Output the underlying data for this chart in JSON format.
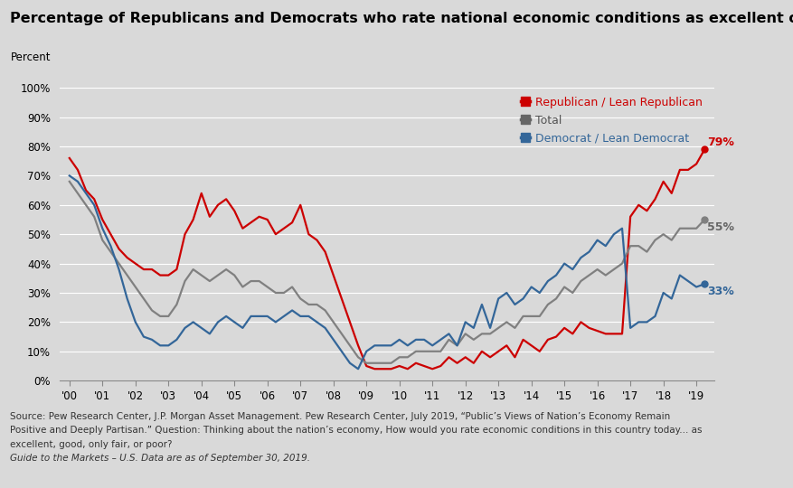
{
  "title": "Percentage of Republicans and Democrats who rate national economic conditions as excellent or good",
  "ylabel": "Percent",
  "background_color": "#d9d9d9",
  "title_fontsize": 11.5,
  "label_fontsize": 9,
  "republican": {
    "label": "Republican / Lean Republican",
    "color": "#cc0000",
    "end_label": "79%",
    "data": [
      [
        2000.0,
        76
      ],
      [
        2000.25,
        72
      ],
      [
        2000.5,
        65
      ],
      [
        2000.75,
        62
      ],
      [
        2001.0,
        55
      ],
      [
        2001.25,
        50
      ],
      [
        2001.5,
        45
      ],
      [
        2001.75,
        42
      ],
      [
        2002.0,
        40
      ],
      [
        2002.25,
        38
      ],
      [
        2002.5,
        38
      ],
      [
        2002.75,
        36
      ],
      [
        2003.0,
        36
      ],
      [
        2003.25,
        38
      ],
      [
        2003.5,
        50
      ],
      [
        2003.75,
        55
      ],
      [
        2004.0,
        64
      ],
      [
        2004.25,
        56
      ],
      [
        2004.5,
        60
      ],
      [
        2004.75,
        62
      ],
      [
        2005.0,
        58
      ],
      [
        2005.25,
        52
      ],
      [
        2005.5,
        54
      ],
      [
        2005.75,
        56
      ],
      [
        2006.0,
        55
      ],
      [
        2006.25,
        50
      ],
      [
        2006.5,
        52
      ],
      [
        2006.75,
        54
      ],
      [
        2007.0,
        60
      ],
      [
        2007.25,
        50
      ],
      [
        2007.5,
        48
      ],
      [
        2007.75,
        44
      ],
      [
        2008.0,
        36
      ],
      [
        2008.25,
        28
      ],
      [
        2008.5,
        20
      ],
      [
        2008.75,
        12
      ],
      [
        2009.0,
        5
      ],
      [
        2009.25,
        4
      ],
      [
        2009.5,
        4
      ],
      [
        2009.75,
        4
      ],
      [
        2010.0,
        5
      ],
      [
        2010.25,
        4
      ],
      [
        2010.5,
        6
      ],
      [
        2010.75,
        5
      ],
      [
        2011.0,
        4
      ],
      [
        2011.25,
        5
      ],
      [
        2011.5,
        8
      ],
      [
        2011.75,
        6
      ],
      [
        2012.0,
        8
      ],
      [
        2012.25,
        6
      ],
      [
        2012.5,
        10
      ],
      [
        2012.75,
        8
      ],
      [
        2013.0,
        10
      ],
      [
        2013.25,
        12
      ],
      [
        2013.5,
        8
      ],
      [
        2013.75,
        14
      ],
      [
        2014.0,
        12
      ],
      [
        2014.25,
        10
      ],
      [
        2014.5,
        14
      ],
      [
        2014.75,
        15
      ],
      [
        2015.0,
        18
      ],
      [
        2015.25,
        16
      ],
      [
        2015.5,
        20
      ],
      [
        2015.75,
        18
      ],
      [
        2016.0,
        17
      ],
      [
        2016.25,
        16
      ],
      [
        2016.5,
        16
      ],
      [
        2016.75,
        16
      ],
      [
        2017.0,
        56
      ],
      [
        2017.25,
        60
      ],
      [
        2017.5,
        58
      ],
      [
        2017.75,
        62
      ],
      [
        2018.0,
        68
      ],
      [
        2018.25,
        64
      ],
      [
        2018.5,
        72
      ],
      [
        2018.75,
        72
      ],
      [
        2019.0,
        74
      ],
      [
        2019.25,
        79
      ]
    ]
  },
  "total": {
    "label": "Total",
    "color": "#808080",
    "end_label": "55%",
    "data": [
      [
        2000.0,
        68
      ],
      [
        2000.25,
        64
      ],
      [
        2000.5,
        60
      ],
      [
        2000.75,
        56
      ],
      [
        2001.0,
        48
      ],
      [
        2001.25,
        44
      ],
      [
        2001.5,
        40
      ],
      [
        2001.75,
        36
      ],
      [
        2002.0,
        32
      ],
      [
        2002.25,
        28
      ],
      [
        2002.5,
        24
      ],
      [
        2002.75,
        22
      ],
      [
        2003.0,
        22
      ],
      [
        2003.25,
        26
      ],
      [
        2003.5,
        34
      ],
      [
        2003.75,
        38
      ],
      [
        2004.0,
        36
      ],
      [
        2004.25,
        34
      ],
      [
        2004.5,
        36
      ],
      [
        2004.75,
        38
      ],
      [
        2005.0,
        36
      ],
      [
        2005.25,
        32
      ],
      [
        2005.5,
        34
      ],
      [
        2005.75,
        34
      ],
      [
        2006.0,
        32
      ],
      [
        2006.25,
        30
      ],
      [
        2006.5,
        30
      ],
      [
        2006.75,
        32
      ],
      [
        2007.0,
        28
      ],
      [
        2007.25,
        26
      ],
      [
        2007.5,
        26
      ],
      [
        2007.75,
        24
      ],
      [
        2008.0,
        20
      ],
      [
        2008.25,
        16
      ],
      [
        2008.5,
        12
      ],
      [
        2008.75,
        8
      ],
      [
        2009.0,
        6
      ],
      [
        2009.25,
        6
      ],
      [
        2009.5,
        6
      ],
      [
        2009.75,
        6
      ],
      [
        2010.0,
        8
      ],
      [
        2010.25,
        8
      ],
      [
        2010.5,
        10
      ],
      [
        2010.75,
        10
      ],
      [
        2011.0,
        10
      ],
      [
        2011.25,
        10
      ],
      [
        2011.5,
        14
      ],
      [
        2011.75,
        12
      ],
      [
        2012.0,
        16
      ],
      [
        2012.25,
        14
      ],
      [
        2012.5,
        16
      ],
      [
        2012.75,
        16
      ],
      [
        2013.0,
        18
      ],
      [
        2013.25,
        20
      ],
      [
        2013.5,
        18
      ],
      [
        2013.75,
        22
      ],
      [
        2014.0,
        22
      ],
      [
        2014.25,
        22
      ],
      [
        2014.5,
        26
      ],
      [
        2014.75,
        28
      ],
      [
        2015.0,
        32
      ],
      [
        2015.25,
        30
      ],
      [
        2015.5,
        34
      ],
      [
        2015.75,
        36
      ],
      [
        2016.0,
        38
      ],
      [
        2016.25,
        36
      ],
      [
        2016.5,
        38
      ],
      [
        2016.75,
        40
      ],
      [
        2017.0,
        46
      ],
      [
        2017.25,
        46
      ],
      [
        2017.5,
        44
      ],
      [
        2017.75,
        48
      ],
      [
        2018.0,
        50
      ],
      [
        2018.25,
        48
      ],
      [
        2018.5,
        52
      ],
      [
        2018.75,
        52
      ],
      [
        2019.0,
        52
      ],
      [
        2019.25,
        55
      ]
    ]
  },
  "democrat": {
    "label": "Democrat / Lean Democrat",
    "color": "#336699",
    "end_label": "33%",
    "data": [
      [
        2000.0,
        70
      ],
      [
        2000.25,
        68
      ],
      [
        2000.5,
        64
      ],
      [
        2000.75,
        60
      ],
      [
        2001.0,
        52
      ],
      [
        2001.25,
        46
      ],
      [
        2001.5,
        38
      ],
      [
        2001.75,
        28
      ],
      [
        2002.0,
        20
      ],
      [
        2002.25,
        15
      ],
      [
        2002.5,
        14
      ],
      [
        2002.75,
        12
      ],
      [
        2003.0,
        12
      ],
      [
        2003.25,
        14
      ],
      [
        2003.5,
        18
      ],
      [
        2003.75,
        20
      ],
      [
        2004.0,
        18
      ],
      [
        2004.25,
        16
      ],
      [
        2004.5,
        20
      ],
      [
        2004.75,
        22
      ],
      [
        2005.0,
        20
      ],
      [
        2005.25,
        18
      ],
      [
        2005.5,
        22
      ],
      [
        2005.75,
        22
      ],
      [
        2006.0,
        22
      ],
      [
        2006.25,
        20
      ],
      [
        2006.5,
        22
      ],
      [
        2006.75,
        24
      ],
      [
        2007.0,
        22
      ],
      [
        2007.25,
        22
      ],
      [
        2007.5,
        20
      ],
      [
        2007.75,
        18
      ],
      [
        2008.0,
        14
      ],
      [
        2008.25,
        10
      ],
      [
        2008.5,
        6
      ],
      [
        2008.75,
        4
      ],
      [
        2009.0,
        10
      ],
      [
        2009.25,
        12
      ],
      [
        2009.5,
        12
      ],
      [
        2009.75,
        12
      ],
      [
        2010.0,
        14
      ],
      [
        2010.25,
        12
      ],
      [
        2010.5,
        14
      ],
      [
        2010.75,
        14
      ],
      [
        2011.0,
        12
      ],
      [
        2011.25,
        14
      ],
      [
        2011.5,
        16
      ],
      [
        2011.75,
        12
      ],
      [
        2012.0,
        20
      ],
      [
        2012.25,
        18
      ],
      [
        2012.5,
        26
      ],
      [
        2012.75,
        18
      ],
      [
        2013.0,
        28
      ],
      [
        2013.25,
        30
      ],
      [
        2013.5,
        26
      ],
      [
        2013.75,
        28
      ],
      [
        2014.0,
        32
      ],
      [
        2014.25,
        30
      ],
      [
        2014.5,
        34
      ],
      [
        2014.75,
        36
      ],
      [
        2015.0,
        40
      ],
      [
        2015.25,
        38
      ],
      [
        2015.5,
        42
      ],
      [
        2015.75,
        44
      ],
      [
        2016.0,
        48
      ],
      [
        2016.25,
        46
      ],
      [
        2016.5,
        50
      ],
      [
        2016.75,
        52
      ],
      [
        2017.0,
        18
      ],
      [
        2017.25,
        20
      ],
      [
        2017.5,
        20
      ],
      [
        2017.75,
        22
      ],
      [
        2018.0,
        30
      ],
      [
        2018.25,
        28
      ],
      [
        2018.5,
        36
      ],
      [
        2018.75,
        34
      ],
      [
        2019.0,
        32
      ],
      [
        2019.25,
        33
      ]
    ]
  },
  "source_line1": "Source: Pew Research Center, J.P. Morgan Asset Management. Pew Research Center, July 2019, “Public’s Views of Nation’s Economy Remain",
  "source_line2": "Positive and Deeply Partisan.” Question: Thinking about the nation’s economy, How would you rate economic conditions in this country today... as",
  "source_line3": "excellent, good, only fair, or poor?",
  "source_line4": "Guide to the Markets – U.S. Data are as of September 30, 2019.",
  "yticks": [
    0,
    10,
    20,
    30,
    40,
    50,
    60,
    70,
    80,
    90,
    100
  ],
  "ytick_labels": [
    "0%",
    "10%",
    "20%",
    "30%",
    "40%",
    "50%",
    "60%",
    "70%",
    "80%",
    "90%",
    "100%"
  ],
  "xtick_years": [
    2000,
    2001,
    2002,
    2003,
    2004,
    2005,
    2006,
    2007,
    2008,
    2009,
    2010,
    2011,
    2012,
    2013,
    2014,
    2015,
    2016,
    2017,
    2018,
    2019
  ],
  "xtick_labels": [
    "'00",
    "'01",
    "'02",
    "'03",
    "'04",
    "'05",
    "'06",
    "'07",
    "'08",
    "'09",
    "'10",
    "'11",
    "'12",
    "'13",
    "'14",
    "'15",
    "'16",
    "'17",
    "'18",
    "'19"
  ]
}
